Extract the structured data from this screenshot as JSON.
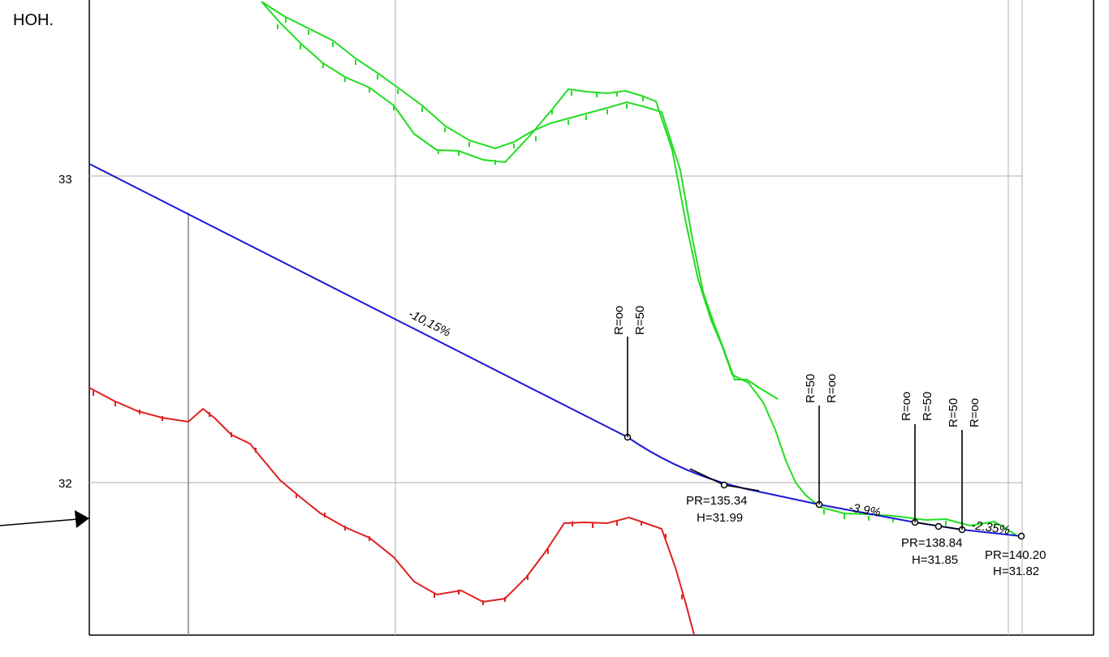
{
  "header": {
    "label": "НОН."
  },
  "elevation_ticks": [
    "33",
    "32"
  ],
  "grade_labels": [
    {
      "text": "-10,15%",
      "value": -10.15
    },
    {
      "text": "-3.9%",
      "value": -3.9
    },
    {
      "text": "-2.35%",
      "value": -2.35
    }
  ],
  "vertices": [
    {
      "pr": "PR=135.34",
      "h": "H=31.99"
    },
    {
      "pr": "PR=138.84",
      "h": "H=31.85"
    },
    {
      "pr": "PR=140.20",
      "h": "H=31.82"
    }
  ],
  "radius_markers": [
    {
      "first": "R=oo",
      "second": "R=50"
    },
    {
      "first": "R=50",
      "second": "R=oo"
    },
    {
      "first": "R=oo",
      "second": "R=50"
    },
    {
      "first": "R=50",
      "second": "R=oo"
    }
  ],
  "colors": {
    "design_line": "#1a1ad4",
    "terrain_line": "#22dd22",
    "bottom_line": "#e02020",
    "grid": "#bdbdbd",
    "frame": "#000000"
  }
}
